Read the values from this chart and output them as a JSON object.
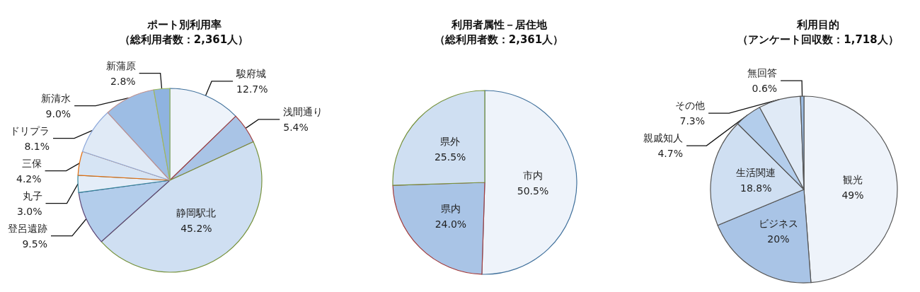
{
  "chart_data": [
    {
      "type": "pie",
      "title": "ポート別利用率",
      "subtitle": "（総利用者数：2,361人）",
      "categories": [
        "駿府城",
        "浅間通り",
        "静岡駅北",
        "登呂遺跡",
        "丸子",
        "三保",
        "ドリプラ",
        "新清水",
        "新蒲原"
      ],
      "values": [
        12.7,
        5.4,
        45.2,
        9.5,
        3.0,
        4.2,
        8.1,
        9.0,
        2.8
      ],
      "value_labels": [
        "12.7%",
        "5.4%",
        "45.2%",
        "9.5%",
        "3.0%",
        "4.2%",
        "8.1%",
        "9.0%",
        "2.8%"
      ],
      "colors": [
        "#eef3fa",
        "#a9c4e6",
        "#cfdff2",
        "#b3cdeb",
        "#e4edf8",
        "#d6e4f4",
        "#e0eaf6",
        "#9dbde4",
        "#8fb3e0"
      ]
    },
    {
      "type": "pie",
      "title": "利用者属性－居住地",
      "subtitle": "（総利用者数：2,361人）",
      "categories": [
        "市内",
        "県内",
        "県外"
      ],
      "values": [
        50.5,
        24.0,
        25.5
      ],
      "value_labels": [
        "50.5%",
        "24.0%",
        "25.5%"
      ],
      "colors": [
        "#eef3fa",
        "#a9c4e6",
        "#cfdff2"
      ]
    },
    {
      "type": "pie",
      "title": "利用目的",
      "subtitle": "（アンケート回収数：1,718人）",
      "categories": [
        "観光",
        "ビジネス",
        "生活関連",
        "親戚知人",
        "その他",
        "無回答"
      ],
      "values": [
        49,
        20,
        18.8,
        4.7,
        7.3,
        0.6
      ],
      "value_labels": [
        "49%",
        "20%",
        "18.8%",
        "4.7%",
        "7.3%",
        "0.6%"
      ],
      "colors": [
        "#eef3fa",
        "#a9c4e6",
        "#cfdff2",
        "#b3cdeb",
        "#e0eaf6",
        "#9dbde4"
      ]
    }
  ]
}
